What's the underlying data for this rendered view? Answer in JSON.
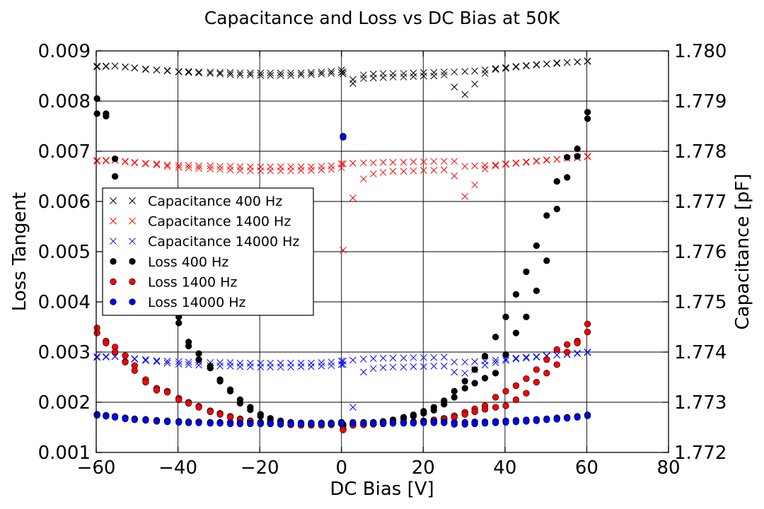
{
  "chart_data": {
    "type": "scatter",
    "title": "Capacitance and Loss vs DC Bias at 50K",
    "xlabel": "DC Bias [V]",
    "ylabel_left": "Loss Tangent",
    "ylabel_right": "Capacitance [pF]",
    "xlim": [
      -60,
      80
    ],
    "ylim_left": [
      0.001,
      0.009
    ],
    "ylim_right": [
      1.772,
      1.78
    ],
    "x_ticks": [
      "−60",
      "−40",
      "−20",
      "0",
      "20",
      "40",
      "60",
      "80"
    ],
    "y_ticks_left": [
      "0.001",
      "0.002",
      "0.003",
      "0.004",
      "0.005",
      "0.006",
      "0.007",
      "0.008",
      "0.009"
    ],
    "y_ticks_right": [
      "1.772",
      "1.773",
      "1.774",
      "1.775",
      "1.776",
      "1.777",
      "1.778",
      "1.779",
      "1.780"
    ],
    "grid": true,
    "legend_position": "center-left",
    "colors": {
      "400": "#000000",
      "1400": "#ff0000",
      "14000": "#0000ff"
    },
    "series": [
      {
        "name": "Capacitance 400 Hz",
        "axis": "right",
        "marker": "x",
        "color": "#000000",
        "x": [
          -59.8,
          -57.6,
          -55.4,
          -52.9,
          -50.6,
          -47.9,
          -45.2,
          -42.6,
          -39.8,
          -37.4,
          -34.9,
          -32.1,
          -29.7,
          -27.2,
          -24.8,
          -22.3,
          -19.8,
          -17.4,
          -14.9,
          -12.4,
          -9.9,
          -7.4,
          -4.9,
          -2.5,
          0.0,
          0.4,
          2.8,
          5.4,
          7.8,
          10.2,
          12.6,
          15.2,
          17.6,
          20.1,
          22.6,
          25.1,
          27.6,
          30.2,
          32.6,
          35.1,
          37.7,
          40.2,
          42.7,
          45.2,
          47.7,
          50.2,
          52.7,
          55.2,
          57.7,
          60.2
        ],
        "y": [
          1.7797,
          1.7797,
          1.7797,
          1.77968,
          1.77966,
          1.77963,
          1.77962,
          1.77961,
          1.77959,
          1.77959,
          1.77958,
          1.77958,
          1.77957,
          1.77957,
          1.77956,
          1.77956,
          1.77956,
          1.77956,
          1.77956,
          1.77956,
          1.77956,
          1.77957,
          1.77958,
          1.77959,
          1.77962,
          1.77958,
          1.77943,
          1.77952,
          1.77954,
          1.77955,
          1.77955,
          1.77955,
          1.77956,
          1.77957,
          1.77957,
          1.77958,
          1.77958,
          1.77959,
          1.7796,
          1.77962,
          1.77965,
          1.77967,
          1.77969,
          1.77971,
          1.77973,
          1.77974,
          1.77976,
          1.77977,
          1.77978,
          1.77979
        ],
        "y2": [
          1.77968,
          1.77969,
          1.7797,
          1.77968,
          1.77966,
          1.77964,
          1.77962,
          1.7796,
          1.77958,
          1.77957,
          1.77956,
          1.77955,
          1.77954,
          1.77953,
          1.77952,
          1.77952,
          1.77951,
          1.77951,
          1.77951,
          1.77951,
          1.77952,
          1.77953,
          1.77954,
          1.77955,
          1.77957,
          1.77954,
          1.77935,
          1.77945,
          1.77946,
          1.77947,
          1.77948,
          1.77948,
          1.77949,
          1.7795,
          1.7795,
          1.77952,
          1.77928,
          1.77913,
          1.77934,
          1.77955,
          1.77963,
          1.77965,
          1.77968,
          1.7797,
          1.77972,
          1.77974,
          1.77975,
          1.77977,
          1.77978,
          1.7798
        ]
      },
      {
        "name": "Capacitance 1400 Hz",
        "axis": "right",
        "marker": "x",
        "color": "#ff0000",
        "x": [
          -59.8,
          -57.6,
          -55.4,
          -52.9,
          -50.6,
          -47.9,
          -45.2,
          -42.6,
          -39.8,
          -37.4,
          -34.9,
          -32.1,
          -29.7,
          -27.2,
          -24.8,
          -22.3,
          -19.8,
          -17.4,
          -14.9,
          -12.4,
          -9.9,
          -7.4,
          -4.9,
          -2.5,
          0.0,
          0.4,
          2.8,
          5.4,
          7.8,
          10.2,
          12.6,
          15.2,
          17.6,
          20.1,
          22.6,
          25.1,
          27.6,
          30.2,
          32.6,
          35.1,
          37.7,
          40.2,
          42.7,
          45.2,
          47.7,
          50.2,
          52.7,
          55.2,
          57.7,
          60.2
        ],
        "y": [
          1.77782,
          1.77782,
          1.77782,
          1.7778,
          1.77778,
          1.77776,
          1.77775,
          1.77773,
          1.77772,
          1.77772,
          1.77771,
          1.77771,
          1.7777,
          1.7777,
          1.77769,
          1.77769,
          1.77769,
          1.77769,
          1.77769,
          1.77769,
          1.77769,
          1.77769,
          1.7777,
          1.77771,
          1.77775,
          1.77775,
          1.77776,
          1.77777,
          1.77777,
          1.77778,
          1.77778,
          1.77778,
          1.77779,
          1.77779,
          1.7778,
          1.7778,
          1.7778,
          1.7777,
          1.77771,
          1.77772,
          1.77773,
          1.77775,
          1.77777,
          1.77779,
          1.77781,
          1.77783,
          1.77784,
          1.77786,
          1.77788,
          1.7779
        ],
        "y2": [
          1.7778,
          1.77781,
          1.77782,
          1.77779,
          1.77777,
          1.77775,
          1.77773,
          1.7777,
          1.77768,
          1.77767,
          1.77766,
          1.77765,
          1.77764,
          1.77763,
          1.77762,
          1.77761,
          1.77761,
          1.77761,
          1.77761,
          1.77761,
          1.77762,
          1.77762,
          1.77763,
          1.77764,
          1.77767,
          1.77603,
          1.77707,
          1.77745,
          1.77755,
          1.77758,
          1.7776,
          1.7776,
          1.77761,
          1.77762,
          1.77762,
          1.77763,
          1.77751,
          1.7771,
          1.77733,
          1.77765,
          1.77771,
          1.77774,
          1.77776,
          1.77778,
          1.7778,
          1.77782,
          1.77784,
          1.77786,
          1.77787,
          1.77789
        ]
      },
      {
        "name": "Capacitance 14000 Hz",
        "axis": "right",
        "marker": "x",
        "color": "#0000ff",
        "x": [
          -59.8,
          -57.6,
          -55.4,
          -52.9,
          -50.6,
          -47.9,
          -45.2,
          -42.6,
          -39.8,
          -37.4,
          -34.9,
          -32.1,
          -29.7,
          -27.2,
          -24.8,
          -22.3,
          -19.8,
          -17.4,
          -14.9,
          -12.4,
          -9.9,
          -7.4,
          -4.9,
          -2.5,
          0.0,
          0.4,
          2.8,
          5.4,
          7.8,
          10.2,
          12.6,
          15.2,
          17.6,
          20.1,
          22.6,
          25.1,
          27.6,
          30.2,
          32.6,
          35.1,
          37.7,
          40.2,
          42.7,
          45.2,
          47.7,
          50.2,
          52.7,
          55.2,
          57.7,
          60.2
        ],
        "y": [
          1.77391,
          1.77391,
          1.77391,
          1.77389,
          1.77387,
          1.77385,
          1.77383,
          1.77382,
          1.77381,
          1.7738,
          1.7738,
          1.77379,
          1.77379,
          1.77379,
          1.77378,
          1.77378,
          1.77378,
          1.77378,
          1.77378,
          1.77378,
          1.77378,
          1.77378,
          1.77379,
          1.7738,
          1.77382,
          1.77382,
          1.77384,
          1.77386,
          1.77387,
          1.77388,
          1.77388,
          1.77388,
          1.77389,
          1.77389,
          1.77389,
          1.7739,
          1.7738,
          1.7738,
          1.77381,
          1.77382,
          1.77384,
          1.77386,
          1.77388,
          1.7739,
          1.77391,
          1.77393,
          1.77394,
          1.77396,
          1.77398,
          1.774
        ],
        "y2": [
          1.77389,
          1.7739,
          1.77391,
          1.77388,
          1.77386,
          1.77383,
          1.77381,
          1.77378,
          1.77376,
          1.77375,
          1.77374,
          1.77373,
          1.77372,
          1.77372,
          1.77371,
          1.77371,
          1.7737,
          1.7737,
          1.7737,
          1.7737,
          1.77371,
          1.77371,
          1.77372,
          1.77373,
          1.77375,
          1.77375,
          1.7729,
          1.7736,
          1.77367,
          1.77369,
          1.7737,
          1.7737,
          1.77371,
          1.77371,
          1.77372,
          1.77372,
          1.7736,
          1.77358,
          1.77365,
          1.77374,
          1.77379,
          1.77383,
          1.77386,
          1.77388,
          1.7739,
          1.77392,
          1.77394,
          1.77395,
          1.77397,
          1.77399
        ]
      },
      {
        "name": "Loss 400 Hz",
        "axis": "left",
        "marker": "o",
        "color": "#000000",
        "x": [
          -59.8,
          -57.6,
          -55.4,
          -52.9,
          -50.6,
          -47.9,
          -45.2,
          -42.6,
          -39.8,
          -37.4,
          -34.9,
          -32.1,
          -29.7,
          -27.2,
          -24.8,
          -22.3,
          -19.8,
          -17.4,
          -14.9,
          -12.4,
          -9.9,
          -7.4,
          -4.9,
          -2.5,
          0.0,
          0.4,
          2.8,
          5.4,
          7.8,
          10.2,
          12.6,
          15.2,
          17.6,
          20.1,
          22.6,
          25.1,
          27.6,
          30.2,
          32.6,
          35.1,
          37.7,
          40.2,
          42.7,
          45.2,
          47.7,
          50.2,
          52.7,
          55.2,
          57.7,
          60.2
        ],
        "y": [
          0.00805,
          0.00775,
          0.00685,
          0.00615,
          0.0056,
          0.00505,
          0.0046,
          0.0041,
          0.0037,
          0.0032,
          0.00297,
          0.00272,
          0.00245,
          0.00225,
          0.00205,
          0.0019,
          0.00176,
          0.00168,
          0.00163,
          0.0016,
          0.00158,
          0.00157,
          0.00157,
          0.00158,
          0.0016,
          0.00156,
          0.00157,
          0.00158,
          0.0016,
          0.00162,
          0.00165,
          0.0017,
          0.00175,
          0.00182,
          0.0019,
          0.00203,
          0.00222,
          0.00242,
          0.00265,
          0.00292,
          0.0033,
          0.0037,
          0.00415,
          0.0046,
          0.00512,
          0.00572,
          0.0064,
          0.00688,
          0.00705,
          0.00778
        ],
        "y2": [
          0.00775,
          0.0077,
          0.0065,
          0.006,
          0.00545,
          0.0049,
          0.0044,
          0.00392,
          0.00358,
          0.00312,
          0.00285,
          0.00268,
          0.00242,
          0.00222,
          0.00198,
          0.00185,
          0.00172,
          0.00164,
          0.0016,
          0.00158,
          0.00156,
          0.00155,
          0.00155,
          0.00156,
          0.00157,
          0.00153,
          0.00155,
          0.00156,
          0.00158,
          0.0016,
          0.00163,
          0.00167,
          0.00172,
          0.00178,
          0.00184,
          0.00196,
          0.0021,
          0.00228,
          0.00238,
          0.00248,
          0.00258,
          0.00295,
          0.00338,
          0.0037,
          0.00422,
          0.00482,
          0.00585,
          0.00648,
          0.0069,
          0.00765
        ]
      },
      {
        "name": "Loss 1400 Hz",
        "axis": "left",
        "marker": "o",
        "color": "#ff0000",
        "x": [
          -59.8,
          -57.6,
          -55.4,
          -52.9,
          -50.6,
          -47.9,
          -45.2,
          -42.6,
          -39.8,
          -37.4,
          -34.9,
          -32.1,
          -29.7,
          -27.2,
          -24.8,
          -22.3,
          -19.8,
          -17.4,
          -14.9,
          -12.4,
          -9.9,
          -7.4,
          -4.9,
          -2.5,
          0.0,
          0.4,
          2.8,
          5.4,
          7.8,
          10.2,
          12.6,
          15.2,
          17.6,
          20.1,
          22.6,
          25.1,
          27.6,
          30.2,
          32.6,
          35.1,
          37.7,
          40.2,
          42.7,
          45.2,
          47.7,
          50.2,
          52.7,
          55.2,
          57.7,
          60.2
        ],
        "y": [
          0.00348,
          0.00322,
          0.0031,
          0.00293,
          0.00273,
          0.00245,
          0.00228,
          0.00222,
          0.00208,
          0.002,
          0.00192,
          0.00183,
          0.00178,
          0.00172,
          0.00167,
          0.00163,
          0.0016,
          0.00158,
          0.00157,
          0.00156,
          0.00155,
          0.00155,
          0.00155,
          0.00156,
          0.0016,
          0.00147,
          0.00155,
          0.00156,
          0.00157,
          0.00158,
          0.00159,
          0.0016,
          0.00161,
          0.00163,
          0.00165,
          0.00168,
          0.00173,
          0.0018,
          0.00187,
          0.00193,
          0.0021,
          0.00222,
          0.00233,
          0.00247,
          0.00265,
          0.00285,
          0.00305,
          0.00315,
          0.00322,
          0.00356
        ],
        "y2": [
          0.00338,
          0.00318,
          0.003,
          0.0028,
          0.00263,
          0.0024,
          0.00224,
          0.0022,
          0.00205,
          0.00198,
          0.0019,
          0.00181,
          0.00176,
          0.0017,
          0.00165,
          0.00162,
          0.00158,
          0.00157,
          0.00156,
          0.00155,
          0.00154,
          0.00154,
          0.00154,
          0.00155,
          0.00157,
          0.00145,
          0.00154,
          0.00155,
          0.00156,
          0.00157,
          0.00158,
          0.00159,
          0.0016,
          0.00162,
          0.00163,
          0.00166,
          0.0017,
          0.00176,
          0.00181,
          0.00186,
          0.0019,
          0.00193,
          0.00205,
          0.00218,
          0.0024,
          0.00258,
          0.00275,
          0.003,
          0.00318,
          0.0034
        ]
      },
      {
        "name": "Loss 14000 Hz",
        "axis": "left",
        "marker": "o",
        "color": "#0000ff",
        "x": [
          -59.8,
          -57.6,
          -55.4,
          -52.9,
          -50.6,
          -47.9,
          -45.2,
          -42.6,
          -39.8,
          -37.4,
          -34.9,
          -32.1,
          -29.7,
          -27.2,
          -24.8,
          -22.3,
          -19.8,
          -17.4,
          -14.9,
          -12.4,
          -9.9,
          -7.4,
          -4.9,
          -2.5,
          0.0,
          0.4,
          2.8,
          5.4,
          7.8,
          10.2,
          12.6,
          15.2,
          17.6,
          20.1,
          22.6,
          25.1,
          27.6,
          30.2,
          32.6,
          35.1,
          37.7,
          40.2,
          42.7,
          45.2,
          47.7,
          50.2,
          52.7,
          55.2,
          57.7,
          60.2
        ],
        "y": [
          0.00176,
          0.00174,
          0.00172,
          0.00169,
          0.00167,
          0.00166,
          0.00164,
          0.00163,
          0.00162,
          0.00161,
          0.00161,
          0.0016,
          0.0016,
          0.0016,
          0.00159,
          0.00159,
          0.00159,
          0.00159,
          0.00159,
          0.00159,
          0.00159,
          0.00159,
          0.00159,
          0.00159,
          0.0016,
          0.0073,
          0.0016,
          0.0016,
          0.0016,
          0.0016,
          0.0016,
          0.0016,
          0.0016,
          0.00161,
          0.00161,
          0.00161,
          0.0016,
          0.0016,
          0.00161,
          0.00161,
          0.00162,
          0.00163,
          0.00164,
          0.00165,
          0.00166,
          0.00167,
          0.00169,
          0.0017,
          0.00172,
          0.00175
        ],
        "y2": [
          0.00174,
          0.00172,
          0.0017,
          0.00167,
          0.00165,
          0.00164,
          0.00162,
          0.00161,
          0.0016,
          0.00159,
          0.00159,
          0.00158,
          0.00158,
          0.00157,
          0.00157,
          0.00157,
          0.00157,
          0.00157,
          0.00157,
          0.00157,
          0.00157,
          0.00157,
          0.00157,
          0.00157,
          0.00158,
          0.00728,
          0.00158,
          0.00158,
          0.00158,
          0.00158,
          0.00158,
          0.00158,
          0.00158,
          0.00159,
          0.00159,
          0.00159,
          0.00156,
          0.00156,
          0.00157,
          0.00158,
          0.00159,
          0.0016,
          0.00161,
          0.00162,
          0.00163,
          0.00165,
          0.00166,
          0.00168,
          0.0017,
          0.00173
        ]
      }
    ]
  }
}
